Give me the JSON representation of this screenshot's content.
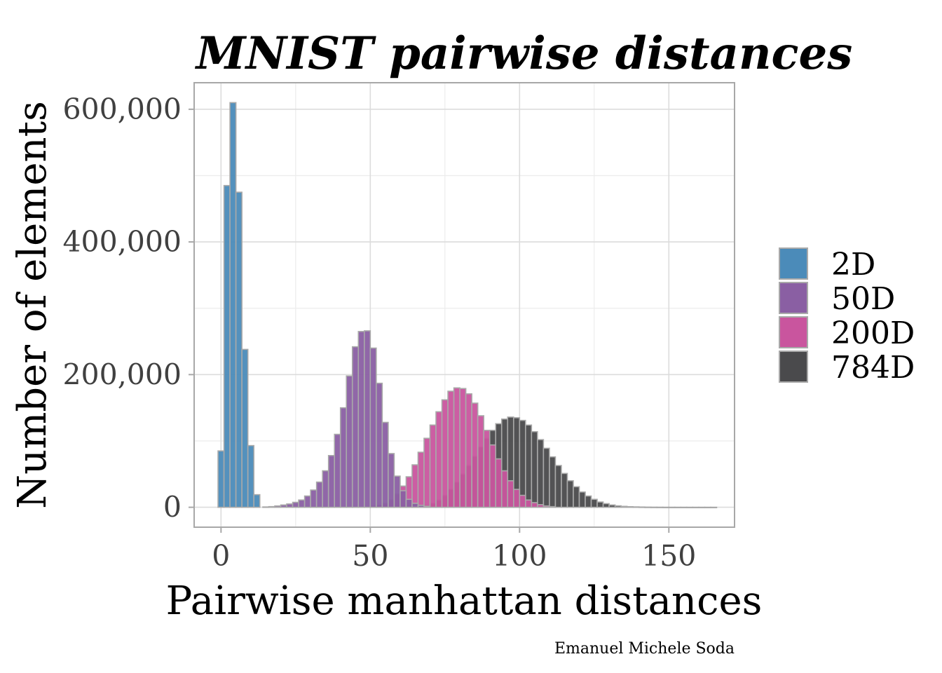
{
  "chart_data": {
    "type": "bar",
    "title": "MNIST pairwise distances",
    "xlabel": "Pairwise manhattan distances",
    "ylabel": "Number of elements",
    "caption": "Emanuel Michele Soda",
    "xlim": [
      -9,
      172
    ],
    "ylim": [
      -30000,
      640000
    ],
    "x_ticks": [
      0,
      50,
      100,
      150
    ],
    "x_tick_labels": [
      "0",
      "50",
      "100",
      "150"
    ],
    "y_ticks": [
      0,
      200000,
      400000,
      600000
    ],
    "y_tick_labels": [
      "0",
      "200,000",
      "400,000",
      "600,000"
    ],
    "grid": true,
    "legend_position": "right",
    "bin_width": 2,
    "series": [
      {
        "name": "784D",
        "color": "#4a4a4c",
        "bin_start": 64,
        "values": [
          500,
          1500,
          3000,
          6000,
          11000,
          18000,
          27000,
          38000,
          50000,
          63000,
          77000,
          91000,
          104000,
          116000,
          126000,
          133000,
          136000,
          135000,
          131000,
          124000,
          114000,
          102000,
          89000,
          76000,
          63000,
          51000,
          40000,
          31000,
          23000,
          17000,
          12000,
          8000,
          5500,
          3500,
          2200,
          1400,
          900,
          600,
          400,
          250,
          150,
          100,
          50,
          30,
          20,
          10,
          5,
          3,
          2,
          1,
          1
        ]
      },
      {
        "name": "200D",
        "color": "#c9559e",
        "bin_start": 50,
        "values": [
          1500,
          3000,
          6000,
          11000,
          20000,
          32000,
          46000,
          64000,
          83000,
          104000,
          124000,
          144000,
          162000,
          175000,
          180000,
          179000,
          171000,
          157000,
          138000,
          116000,
          94000,
          73000,
          55000,
          40000,
          27000,
          18000,
          11000,
          7000,
          4000,
          2000,
          1000
        ]
      },
      {
        "name": "50D",
        "color": "#8a5fa3",
        "bin_start": 14,
        "values": [
          500,
          1000,
          2000,
          3500,
          5000,
          7500,
          11000,
          17000,
          26000,
          38000,
          55000,
          78000,
          110000,
          150000,
          198000,
          242000,
          265000,
          266000,
          240000,
          187000,
          128000,
          81000,
          47000,
          25000,
          12000,
          6000,
          3000,
          1500
        ]
      },
      {
        "name": "2D",
        "color": "#4b8bb9",
        "bin_start": -1,
        "values": [
          85000,
          485000,
          610000,
          475000,
          238000,
          93000,
          19000
        ]
      }
    ]
  }
}
